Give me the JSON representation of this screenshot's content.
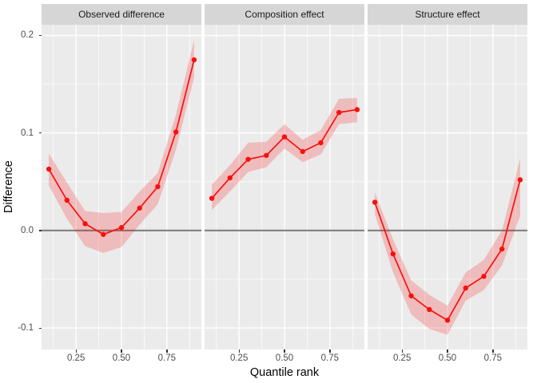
{
  "chart_data": {
    "type": "line",
    "title": "",
    "xlabel": "Quantile rank",
    "ylabel": "Difference",
    "xlim": [
      0.06,
      0.94
    ],
    "ylim": [
      -0.122,
      0.211
    ],
    "x_ticks": [
      0.25,
      0.5,
      0.75
    ],
    "x_tick_labels": [
      "0.25",
      "0.50",
      "0.75"
    ],
    "x_minor_ticks": [
      0.125,
      0.375,
      0.625,
      0.875
    ],
    "y_ticks": [
      0.2,
      0.1,
      0.0,
      -0.1
    ],
    "y_tick_labels": [
      "0.2",
      "0.1",
      "0.0",
      "-0.1"
    ],
    "y_minor_ticks": [
      0.15,
      0.05,
      -0.05
    ],
    "hline": 0,
    "grid": "on",
    "legend": "none",
    "x": [
      0.1,
      0.2,
      0.3,
      0.4,
      0.5,
      0.6,
      0.7,
      0.8,
      0.9
    ],
    "facets": [
      {
        "label": "Observed difference",
        "y": [
          0.063,
          0.031,
          0.007,
          -0.004,
          0.003,
          0.023,
          0.045,
          0.101,
          0.175
        ],
        "lower": [
          0.046,
          0.012,
          -0.016,
          -0.023,
          -0.017,
          0.006,
          0.027,
          0.083,
          0.157
        ],
        "upper": [
          0.079,
          0.049,
          0.02,
          0.018,
          0.019,
          0.04,
          0.059,
          0.119,
          0.195
        ]
      },
      {
        "label": "Composition effect",
        "y": [
          0.033,
          0.054,
          0.073,
          0.077,
          0.096,
          0.081,
          0.09,
          0.121,
          0.124
        ],
        "lower": [
          0.021,
          0.04,
          0.06,
          0.065,
          0.084,
          0.07,
          0.078,
          0.109,
          0.111
        ],
        "upper": [
          0.047,
          0.067,
          0.09,
          0.091,
          0.109,
          0.093,
          0.103,
          0.135,
          0.136
        ]
      },
      {
        "label": "Structure effect",
        "y": [
          0.029,
          -0.024,
          -0.067,
          -0.081,
          -0.092,
          -0.059,
          -0.047,
          -0.019,
          0.052
        ],
        "lower": [
          0.017,
          -0.043,
          -0.086,
          -0.101,
          -0.107,
          -0.072,
          -0.061,
          -0.036,
          0.015
        ],
        "upper": [
          0.039,
          -0.009,
          -0.051,
          -0.066,
          -0.077,
          -0.043,
          -0.03,
          0.0,
          0.074
        ]
      }
    ],
    "colors": {
      "line": "#F8100D",
      "ribbon": "#F8100D",
      "ribbon_opacity": 0.21,
      "panel_bg": "#EBEBEB",
      "strip_bg": "#D6D6D6",
      "grid": "#FFFFFF",
      "hline": "#858585",
      "axis_text": "#4D4D4D",
      "axis_title": "#000000",
      "strip_text": "#1A1A1A",
      "tick_mark": "#333333"
    }
  }
}
